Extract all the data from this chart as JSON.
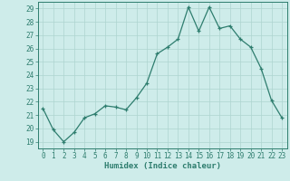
{
  "x": [
    0,
    1,
    2,
    3,
    4,
    5,
    6,
    7,
    8,
    9,
    10,
    11,
    12,
    13,
    14,
    15,
    16,
    17,
    18,
    19,
    20,
    21,
    22,
    23
  ],
  "y": [
    21.5,
    19.9,
    19.0,
    19.7,
    20.8,
    21.1,
    21.7,
    21.6,
    21.4,
    22.3,
    23.4,
    25.6,
    26.1,
    26.7,
    29.1,
    27.3,
    29.1,
    27.5,
    27.7,
    26.7,
    26.1,
    24.5,
    22.1,
    20.8
  ],
  "xlim": [
    -0.5,
    23.5
  ],
  "ylim": [
    18.5,
    29.5
  ],
  "yticks": [
    19,
    20,
    21,
    22,
    23,
    24,
    25,
    26,
    27,
    28,
    29
  ],
  "xticks": [
    0,
    1,
    2,
    3,
    4,
    5,
    6,
    7,
    8,
    9,
    10,
    11,
    12,
    13,
    14,
    15,
    16,
    17,
    18,
    19,
    20,
    21,
    22,
    23
  ],
  "xlabel": "Humidex (Indice chaleur)",
  "line_color": "#2e7d6e",
  "marker": "+",
  "bg_color": "#ceecea",
  "grid_color": "#aed4d0",
  "axis_color": "#2e7d6e",
  "tick_color": "#2e7d6e",
  "label_fontsize": 6.5,
  "tick_fontsize": 5.5,
  "title": ""
}
